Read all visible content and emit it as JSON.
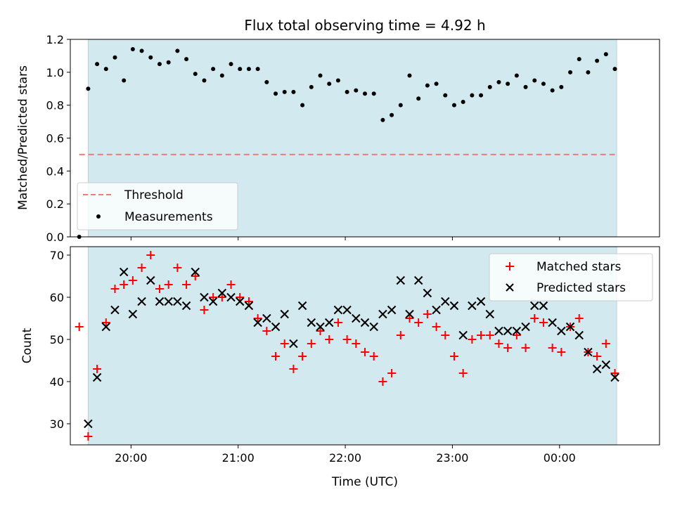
{
  "chart_data": [
    {
      "type": "scatter",
      "title": "Flux total observing time = 4.92 h",
      "xlabel": "",
      "ylabel": "Matched/Predicted stars",
      "xlim": [
        "19:26",
        "00:56"
      ],
      "ylim": [
        0,
        1.2
      ],
      "y_ticks": [
        "0.0",
        "0.2",
        "0.4",
        "0.6",
        "0.8",
        "1.0",
        "1.2"
      ],
      "x_ticks": [
        "20:00",
        "21:00",
        "22:00",
        "23:00",
        "00:00"
      ],
      "x_tick_labels_shown": false,
      "observing_window": [
        "19:36",
        "00:32"
      ],
      "observing_window_color": "#d3e9f0",
      "grid": false,
      "legend_position": "lower-left",
      "series": [
        {
          "name": "Threshold",
          "style": "dashed-line",
          "color": "#f07b78",
          "x": [
            "19:31",
            "00:31"
          ],
          "y": [
            0.5,
            0.5
          ]
        },
        {
          "name": "Measurements",
          "style": "point",
          "color": "#000000",
          "x": [
            "19:31",
            "19:36",
            "19:41",
            "19:46",
            "19:51",
            "19:56",
            "20:01",
            "20:06",
            "20:11",
            "20:16",
            "20:21",
            "20:26",
            "20:31",
            "20:36",
            "20:41",
            "20:46",
            "20:51",
            "20:56",
            "21:01",
            "21:06",
            "21:11",
            "21:16",
            "21:21",
            "21:26",
            "21:31",
            "21:36",
            "21:41",
            "21:46",
            "21:51",
            "21:56",
            "22:01",
            "22:06",
            "22:11",
            "22:16",
            "22:21",
            "22:26",
            "22:31",
            "22:36",
            "22:41",
            "22:46",
            "22:51",
            "22:56",
            "23:01",
            "23:06",
            "23:11",
            "23:16",
            "23:21",
            "23:26",
            "23:31",
            "23:36",
            "23:41",
            "23:46",
            "23:51",
            "23:56",
            "00:01",
            "00:06",
            "00:11",
            "00:16",
            "00:21",
            "00:26",
            "00:31"
          ],
          "y": [
            0.0,
            0.9,
            1.05,
            1.02,
            1.09,
            0.95,
            1.14,
            1.13,
            1.09,
            1.05,
            1.06,
            1.13,
            1.08,
            0.99,
            0.95,
            1.02,
            0.98,
            1.05,
            1.02,
            1.02,
            1.02,
            0.94,
            0.87,
            0.88,
            0.88,
            0.8,
            0.91,
            0.98,
            0.93,
            0.95,
            0.88,
            0.89,
            0.87,
            0.87,
            0.71,
            0.74,
            0.8,
            0.98,
            0.84,
            0.92,
            0.93,
            0.86,
            0.8,
            0.82,
            0.86,
            0.86,
            0.91,
            0.94,
            0.93,
            0.98,
            0.91,
            0.95,
            0.93,
            0.89,
            0.91,
            1.0,
            1.08,
            1.0,
            1.07,
            1.11,
            1.02
          ]
        }
      ]
    },
    {
      "type": "scatter",
      "title": "",
      "xlabel": "Time (UTC)",
      "ylabel": "Count",
      "xlim": [
        "19:26",
        "00:56"
      ],
      "ylim": [
        25,
        72
      ],
      "y_ticks": [
        "30",
        "40",
        "50",
        "60",
        "70"
      ],
      "x_ticks": [
        "20:00",
        "21:00",
        "22:00",
        "23:00",
        "00:00"
      ],
      "observing_window": [
        "19:36",
        "00:32"
      ],
      "observing_window_color": "#d3e9f0",
      "grid": false,
      "legend_position": "upper-right",
      "series": [
        {
          "name": "Matched stars",
          "marker": "plus",
          "color": "#ff0000",
          "x": [
            "19:31",
            "19:36",
            "19:41",
            "19:46",
            "19:51",
            "19:56",
            "20:01",
            "20:06",
            "20:11",
            "20:16",
            "20:21",
            "20:26",
            "20:31",
            "20:36",
            "20:41",
            "20:46",
            "20:51",
            "20:56",
            "21:01",
            "21:06",
            "21:11",
            "21:16",
            "21:21",
            "21:26",
            "21:31",
            "21:36",
            "21:41",
            "21:46",
            "21:51",
            "21:56",
            "22:01",
            "22:06",
            "22:11",
            "22:16",
            "22:21",
            "22:26",
            "22:31",
            "22:36",
            "22:41",
            "22:46",
            "22:51",
            "22:56",
            "23:01",
            "23:06",
            "23:11",
            "23:16",
            "23:21",
            "23:26",
            "23:31",
            "23:36",
            "23:41",
            "23:46",
            "23:51",
            "23:56",
            "00:01",
            "00:06",
            "00:11",
            "00:16",
            "00:21",
            "00:26",
            "00:31"
          ],
          "y": [
            53,
            27,
            43,
            54,
            62,
            63,
            64,
            67,
            70,
            62,
            63,
            67,
            63,
            65,
            57,
            60,
            60,
            63,
            60,
            59,
            55,
            52,
            46,
            49,
            43,
            46,
            49,
            52,
            50,
            54,
            50,
            49,
            47,
            46,
            40,
            42,
            51,
            55,
            54,
            56,
            53,
            51,
            46,
            42,
            50,
            51,
            51,
            49,
            48,
            51,
            48,
            55,
            54,
            48,
            47,
            53,
            55,
            47,
            46,
            49,
            42
          ],
          "note": "first point at 19:31 lies before the observing window"
        },
        {
          "name": "Predicted stars",
          "marker": "x",
          "color": "#000000",
          "x": [
            "19:36",
            "19:41",
            "19:46",
            "19:51",
            "19:56",
            "20:01",
            "20:06",
            "20:11",
            "20:16",
            "20:21",
            "20:26",
            "20:31",
            "20:36",
            "20:41",
            "20:46",
            "20:51",
            "20:56",
            "21:01",
            "21:06",
            "21:11",
            "21:16",
            "21:21",
            "21:26",
            "21:31",
            "21:36",
            "21:41",
            "21:46",
            "21:51",
            "21:56",
            "22:01",
            "22:06",
            "22:11",
            "22:16",
            "22:21",
            "22:26",
            "22:31",
            "22:36",
            "22:41",
            "22:46",
            "22:51",
            "22:56",
            "23:01",
            "23:06",
            "23:11",
            "23:16",
            "23:21",
            "23:26",
            "23:31",
            "23:36",
            "23:41",
            "23:46",
            "23:51",
            "23:56",
            "00:01",
            "00:06",
            "00:11",
            "00:16",
            "00:21",
            "00:26",
            "00:31"
          ],
          "y": [
            30,
            41,
            53,
            57,
            66,
            56,
            59,
            64,
            59,
            59,
            59,
            58,
            66,
            60,
            59,
            61,
            60,
            59,
            58,
            54,
            55,
            53,
            56,
            49,
            58,
            54,
            53,
            54,
            57,
            57,
            55,
            54,
            53,
            56,
            57,
            64,
            56,
            64,
            61,
            57,
            59,
            58,
            51,
            58,
            59,
            56,
            52,
            52,
            52,
            53,
            58,
            58,
            54,
            52,
            53,
            51,
            47,
            43,
            44,
            41
          ]
        }
      ]
    }
  ]
}
